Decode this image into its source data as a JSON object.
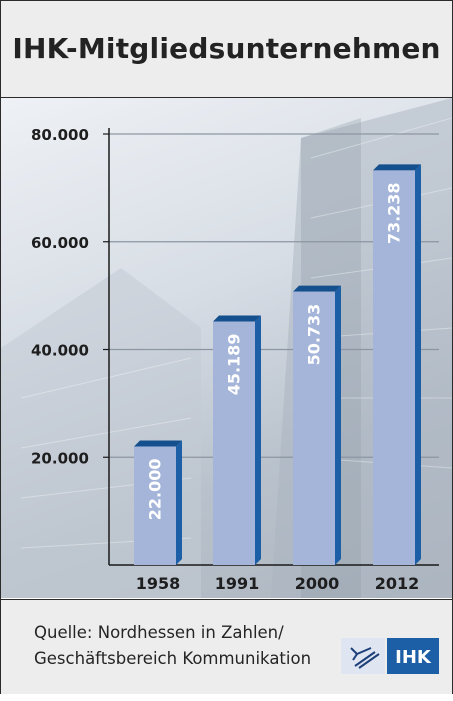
{
  "title": "IHK-Mitgliedsunternehmen",
  "source": {
    "line1": "Quelle: Nordhessen in Zahlen/",
    "line2": "Geschäftsbereich Kommunikation"
  },
  "logo": {
    "text": "IHK",
    "icon": "ihk-logo-icon",
    "color": "#1d5fa6"
  },
  "colors": {
    "bar_front": "#a4b5d9",
    "bar_side": "#1d5fa6",
    "bar_top": "#15508e",
    "axis": "#1a1a1a"
  },
  "chart_data": {
    "type": "bar",
    "title": "IHK-Mitgliedsunternehmen",
    "categories": [
      "1958",
      "1991",
      "2000",
      "2012"
    ],
    "values": [
      22000,
      45189,
      50733,
      73238
    ],
    "value_labels": [
      "22.000",
      "45.189",
      "50.733",
      "73.238"
    ],
    "ylim": [
      0,
      80000
    ],
    "yticks": [
      20000,
      40000,
      60000,
      80000
    ],
    "ytick_labels": [
      "20.000",
      "40.000",
      "60.000",
      "80.000"
    ],
    "grid": true,
    "xlabel": "",
    "ylabel": ""
  }
}
